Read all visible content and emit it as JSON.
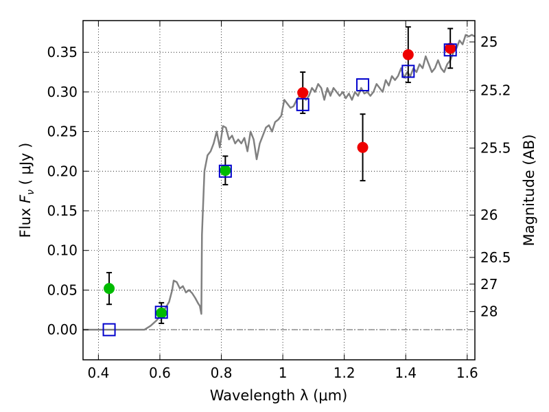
{
  "chart_data": {
    "type": "scatter",
    "title": "",
    "xlabel": "Wavelength  λ (μm)",
    "ylabel": "Flux  F_ν  ( μJy )",
    "ylabel_parts": {
      "prefix": "Flux  ",
      "symbol": "F",
      "subscript": "ν",
      "suffix": "  ( μJy )"
    },
    "y2label": "Magnitude (AB)",
    "xlim": [
      0.35,
      1.625
    ],
    "ylim": [
      -0.038,
      0.39
    ],
    "grid": true,
    "x_ticks": [
      {
        "value": 0.4,
        "label": "0.4"
      },
      {
        "value": 0.6,
        "label": "0.6"
      },
      {
        "value": 0.8,
        "label": "0.8"
      },
      {
        "value": 1.0,
        "label": "1"
      },
      {
        "value": 1.2,
        "label": "1.2"
      },
      {
        "value": 1.4,
        "label": "1.4"
      },
      {
        "value": 1.6,
        "label": "1.6"
      }
    ],
    "y_ticks": [
      {
        "value": 0.0,
        "label": "0.00"
      },
      {
        "value": 0.05,
        "label": "0.05"
      },
      {
        "value": 0.1,
        "label": "0.10"
      },
      {
        "value": 0.15,
        "label": "0.15"
      },
      {
        "value": 0.2,
        "label": "0.20"
      },
      {
        "value": 0.25,
        "label": "0.25"
      },
      {
        "value": 0.3,
        "label": "0.30"
      },
      {
        "value": 0.35,
        "label": "0.35"
      }
    ],
    "y2_ticks": [
      {
        "mag": "25",
        "flux": 0.3631
      },
      {
        "mag": "25.2",
        "flux": 0.302
      },
      {
        "mag": "25.5",
        "flux": 0.2291
      },
      {
        "mag": "26",
        "flux": 0.1446
      },
      {
        "mag": "26.5",
        "flux": 0.0912
      },
      {
        "mag": "27",
        "flux": 0.0575
      },
      {
        "mag": "28",
        "flux": 0.0229
      }
    ],
    "reference_line": {
      "y": 0.0,
      "color": "#555555",
      "style": "dash-dot"
    },
    "series": [
      {
        "kind": "line",
        "color": "#808080",
        "points": [
          [
            0.35,
            0.0
          ],
          [
            0.55,
            0.0
          ],
          [
            0.57,
            0.005
          ],
          [
            0.59,
            0.012
          ],
          [
            0.61,
            0.022
          ],
          [
            0.63,
            0.035
          ],
          [
            0.64,
            0.05
          ],
          [
            0.645,
            0.062
          ],
          [
            0.655,
            0.06
          ],
          [
            0.665,
            0.052
          ],
          [
            0.675,
            0.055
          ],
          [
            0.685,
            0.047
          ],
          [
            0.695,
            0.05
          ],
          [
            0.705,
            0.046
          ],
          [
            0.715,
            0.04
          ],
          [
            0.725,
            0.033
          ],
          [
            0.73,
            0.03
          ],
          [
            0.735,
            0.02
          ],
          [
            0.737,
            0.12
          ],
          [
            0.745,
            0.2
          ],
          [
            0.755,
            0.22
          ],
          [
            0.765,
            0.225
          ],
          [
            0.775,
            0.235
          ],
          [
            0.785,
            0.25
          ],
          [
            0.795,
            0.23
          ],
          [
            0.805,
            0.257
          ],
          [
            0.815,
            0.255
          ],
          [
            0.825,
            0.24
          ],
          [
            0.835,
            0.245
          ],
          [
            0.845,
            0.235
          ],
          [
            0.855,
            0.24
          ],
          [
            0.865,
            0.235
          ],
          [
            0.875,
            0.242
          ],
          [
            0.885,
            0.225
          ],
          [
            0.895,
            0.25
          ],
          [
            0.905,
            0.24
          ],
          [
            0.915,
            0.215
          ],
          [
            0.925,
            0.235
          ],
          [
            0.935,
            0.245
          ],
          [
            0.945,
            0.255
          ],
          [
            0.955,
            0.258
          ],
          [
            0.965,
            0.25
          ],
          [
            0.975,
            0.262
          ],
          [
            0.985,
            0.265
          ],
          [
            0.995,
            0.27
          ],
          [
            1.005,
            0.29
          ],
          [
            1.015,
            0.285
          ],
          [
            1.025,
            0.28
          ],
          [
            1.035,
            0.282
          ],
          [
            1.045,
            0.29
          ],
          [
            1.055,
            0.295
          ],
          [
            1.065,
            0.3
          ],
          [
            1.075,
            0.29
          ],
          [
            1.085,
            0.295
          ],
          [
            1.095,
            0.305
          ],
          [
            1.105,
            0.3
          ],
          [
            1.115,
            0.31
          ],
          [
            1.125,
            0.305
          ],
          [
            1.135,
            0.29
          ],
          [
            1.145,
            0.305
          ],
          [
            1.155,
            0.295
          ],
          [
            1.165,
            0.305
          ],
          [
            1.175,
            0.3
          ],
          [
            1.185,
            0.295
          ],
          [
            1.195,
            0.3
          ],
          [
            1.205,
            0.292
          ],
          [
            1.215,
            0.298
          ],
          [
            1.225,
            0.29
          ],
          [
            1.235,
            0.3
          ],
          [
            1.245,
            0.295
          ],
          [
            1.255,
            0.305
          ],
          [
            1.265,
            0.298
          ],
          [
            1.275,
            0.3
          ],
          [
            1.285,
            0.295
          ],
          [
            1.295,
            0.3
          ],
          [
            1.305,
            0.31
          ],
          [
            1.315,
            0.305
          ],
          [
            1.325,
            0.3
          ],
          [
            1.335,
            0.315
          ],
          [
            1.345,
            0.308
          ],
          [
            1.355,
            0.32
          ],
          [
            1.365,
            0.315
          ],
          [
            1.375,
            0.32
          ],
          [
            1.385,
            0.33
          ],
          [
            1.395,
            0.318
          ],
          [
            1.405,
            0.325
          ],
          [
            1.415,
            0.32
          ],
          [
            1.425,
            0.33
          ],
          [
            1.435,
            0.325
          ],
          [
            1.445,
            0.335
          ],
          [
            1.455,
            0.33
          ],
          [
            1.465,
            0.345
          ],
          [
            1.475,
            0.335
          ],
          [
            1.485,
            0.325
          ],
          [
            1.495,
            0.33
          ],
          [
            1.505,
            0.34
          ],
          [
            1.515,
            0.33
          ],
          [
            1.525,
            0.325
          ],
          [
            1.535,
            0.335
          ],
          [
            1.545,
            0.34
          ],
          [
            1.555,
            0.35
          ],
          [
            1.565,
            0.355
          ],
          [
            1.575,
            0.365
          ],
          [
            1.585,
            0.36
          ],
          [
            1.595,
            0.372
          ],
          [
            1.605,
            0.37
          ],
          [
            1.615,
            0.372
          ],
          [
            1.625,
            0.37
          ]
        ]
      },
      {
        "kind": "points",
        "marker": "circle",
        "color": "#00bb00",
        "points": [
          {
            "x": 0.435,
            "y": 0.052,
            "err": 0.02
          },
          {
            "x": 0.605,
            "y": 0.021,
            "err": 0.013
          },
          {
            "x": 0.813,
            "y": 0.201,
            "err": 0.018
          }
        ]
      },
      {
        "kind": "points",
        "marker": "circle",
        "color": "#ee0000",
        "points": [
          {
            "x": 1.065,
            "y": 0.299,
            "err": 0.026
          },
          {
            "x": 1.26,
            "y": 0.23,
            "err": 0.042
          },
          {
            "x": 1.408,
            "y": 0.347,
            "err": 0.035
          },
          {
            "x": 1.545,
            "y": 0.355,
            "err": 0.025
          }
        ]
      },
      {
        "kind": "points",
        "marker": "open-square",
        "color": "#0000cc",
        "points": [
          {
            "x": 0.435,
            "y": 0.0
          },
          {
            "x": 0.605,
            "y": 0.022
          },
          {
            "x": 0.813,
            "y": 0.2
          },
          {
            "x": 1.065,
            "y": 0.284
          },
          {
            "x": 1.26,
            "y": 0.309
          },
          {
            "x": 1.408,
            "y": 0.326
          },
          {
            "x": 1.545,
            "y": 0.353
          }
        ]
      }
    ]
  }
}
